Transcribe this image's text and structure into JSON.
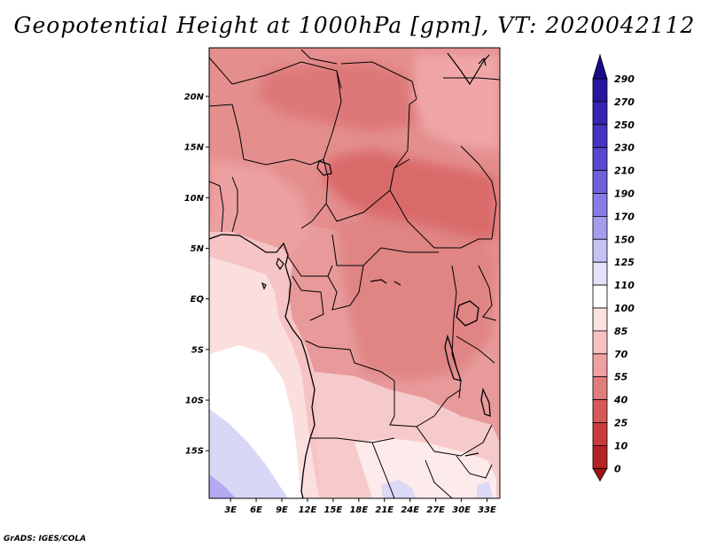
{
  "title": "Geopotential Height at 1000hPa [gpm], VT: 2020042112",
  "credit": "GrADS: IGES/COLA",
  "map": {
    "variable": "Geopotential Height at 1000hPa",
    "units": "gpm",
    "valid_time": "2020042112",
    "lat_ticks": [
      {
        "value": 20,
        "label": "20N"
      },
      {
        "value": 15,
        "label": "15N"
      },
      {
        "value": 10,
        "label": "10N"
      },
      {
        "value": 5,
        "label": "5N"
      },
      {
        "value": 0,
        "label": "EQ"
      },
      {
        "value": -5,
        "label": "5S"
      },
      {
        "value": -10,
        "label": "10S"
      },
      {
        "value": -15,
        "label": "15S"
      }
    ],
    "lon_ticks": [
      {
        "value": 3,
        "label": "3E"
      },
      {
        "value": 6,
        "label": "6E"
      },
      {
        "value": 9,
        "label": "9E"
      },
      {
        "value": 12,
        "label": "12E"
      },
      {
        "value": 15,
        "label": "15E"
      },
      {
        "value": 18,
        "label": "18E"
      },
      {
        "value": 21,
        "label": "21E"
      },
      {
        "value": 24,
        "label": "24E"
      },
      {
        "value": 27,
        "label": "27E"
      },
      {
        "value": 30,
        "label": "30E"
      },
      {
        "value": 33,
        "label": "33E"
      }
    ],
    "extent": {
      "lon_min": 0.5,
      "lon_max": 34.5,
      "lat_min": -19.7,
      "lat_max": 24.8
    }
  },
  "colorbar": {
    "levels": [
      "290",
      "270",
      "250",
      "230",
      "210",
      "190",
      "170",
      "150",
      "125",
      "110",
      "100",
      "85",
      "70",
      "55",
      "40",
      "25",
      "10",
      "0"
    ],
    "colors": [
      "#1a0a8c",
      "#26179e",
      "#3525b0",
      "#4634c0",
      "#5a48d0",
      "#7060dc",
      "#8a7ce6",
      "#a69cee",
      "#c6c2f6",
      "#e4e2fb",
      "#ffffff",
      "#fde2e2",
      "#f8c0c0",
      "#f0a0a0",
      "#e07e7e",
      "#d65858",
      "#c83c3c",
      "#b52424",
      "#a01414"
    ]
  },
  "palette": {
    "low_red": "#d96868",
    "mid_red": "#e48e8e",
    "light_red": "#f0aaaa",
    "pale_pink": "#fbdede",
    "white": "#ffffff",
    "lavender": "#d8d6f6",
    "violet": "#b2aaf0"
  }
}
